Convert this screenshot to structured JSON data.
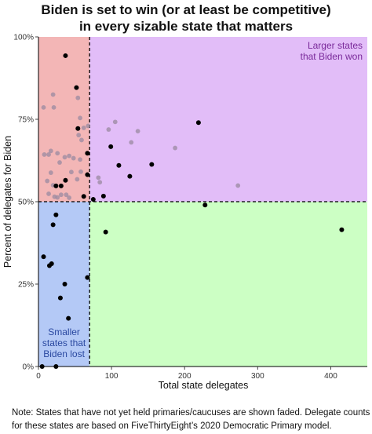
{
  "chart_data": {
    "type": "scatter",
    "title_lines": [
      "Biden is set to win (or at least be competitive)",
      "in every sizable state that matters"
    ],
    "xlabel": "Total state delegates",
    "ylabel": "Percent of delegates for Biden",
    "xlim": [
      0,
      450
    ],
    "ylim": [
      0,
      100
    ],
    "x_ticks": [
      0,
      100,
      200,
      300,
      400
    ],
    "y_ticks": [
      0,
      25,
      50,
      75,
      100
    ],
    "y_tick_labels": [
      "0%",
      "25%",
      "50%",
      "75%",
      "100%"
    ],
    "thresholds": {
      "x": 70,
      "y": 50
    },
    "grid": false,
    "regions": [
      {
        "name": "top-left",
        "color": "#f3b6b6",
        "label_lines": []
      },
      {
        "name": "top-right",
        "color": "#e2bdf8",
        "label_lines": [
          "Larger states",
          "that Biden won"
        ],
        "label_color": "#7a2a9a"
      },
      {
        "name": "bottom-left",
        "color": "#b4c9f6",
        "label_lines": [
          "Smaller",
          "states that",
          "Biden lost"
        ],
        "label_color": "#2a48a0"
      },
      {
        "name": "bottom-right",
        "color": "#ccffc4",
        "label_lines": []
      }
    ],
    "point_colors": {
      "held": "#000000",
      "faded": "#9a8aa0"
    },
    "series": [
      {
        "name": "held",
        "points": [
          [
            37,
            94.3
          ],
          [
            52,
            84.6
          ],
          [
            54,
            72.2
          ],
          [
            67,
            64.7
          ],
          [
            67,
            58.2
          ],
          [
            75,
            50.7
          ],
          [
            89,
            51.7
          ],
          [
            99,
            66.7
          ],
          [
            110,
            61
          ],
          [
            125,
            57.7
          ],
          [
            155,
            61.3
          ],
          [
            219,
            74
          ],
          [
            228,
            49
          ],
          [
            415,
            41.5
          ],
          [
            92,
            40.8
          ],
          [
            24,
            54.8
          ],
          [
            31,
            54.8
          ],
          [
            37,
            56.5
          ],
          [
            62,
            51.6
          ],
          [
            20,
            43
          ],
          [
            24,
            46
          ],
          [
            15,
            30.6
          ],
          [
            18,
            31.2
          ],
          [
            7,
            33.3
          ],
          [
            36,
            25
          ],
          [
            67,
            27
          ],
          [
            30,
            20.8
          ],
          [
            41,
            14.6
          ],
          [
            5,
            0
          ],
          [
            24,
            0
          ]
        ]
      },
      {
        "name": "faded",
        "points": [
          [
            7,
            78.6
          ],
          [
            20,
            82.5
          ],
          [
            21,
            78.6
          ],
          [
            54,
            81.5
          ],
          [
            57,
            75.4
          ],
          [
            55,
            70.2
          ],
          [
            59,
            68.7
          ],
          [
            62,
            72.4
          ],
          [
            68,
            73
          ],
          [
            17,
            65.4
          ],
          [
            26,
            64.7
          ],
          [
            36,
            63.5
          ],
          [
            42,
            63.9
          ],
          [
            48,
            63.2
          ],
          [
            57,
            62.8
          ],
          [
            8,
            64.3
          ],
          [
            14,
            64.3
          ],
          [
            29,
            61.9
          ],
          [
            17,
            58.8
          ],
          [
            45,
            59
          ],
          [
            58,
            59.1
          ],
          [
            12,
            56.3
          ],
          [
            53,
            56.8
          ],
          [
            14,
            52.4
          ],
          [
            20,
            55
          ],
          [
            22,
            51.5
          ],
          [
            26,
            51.3
          ],
          [
            31,
            52.1
          ],
          [
            38,
            52.1
          ],
          [
            42,
            51.2
          ],
          [
            96,
            71.9
          ],
          [
            105,
            74.2
          ],
          [
            127,
            68
          ],
          [
            136,
            71.4
          ],
          [
            187,
            66.3
          ],
          [
            273,
            54.9
          ],
          [
            82,
            57.3
          ],
          [
            84,
            55.9
          ]
        ]
      }
    ]
  },
  "note_lines": [
    "Note: States that have not yet held primaries/caucuses are shown faded. Delegate counts",
    "for these states are based on FiveThirtyEight’s 2020 Democratic Primary model."
  ]
}
